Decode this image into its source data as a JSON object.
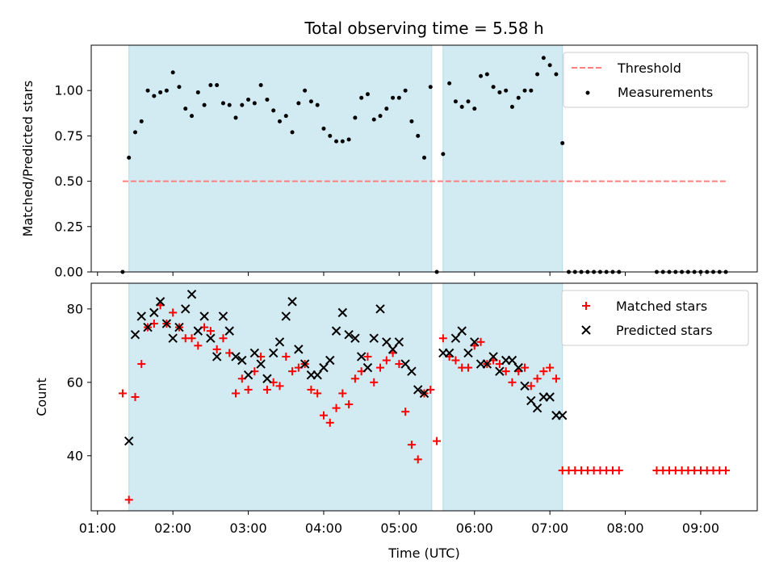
{
  "chart_data": [
    {
      "type": "scatter",
      "title": "Total observing time = 5.58 h",
      "xlabel": "",
      "ylabel": "Matched/Predicted stars",
      "xlim": [
        "00:55",
        "09:45"
      ],
      "ylim": [
        0,
        1.25
      ],
      "y_ticks": [
        "0.00",
        "0.25",
        "0.50",
        "0.75",
        "1.00"
      ],
      "y_tick_values": [
        0,
        0.25,
        0.5,
        0.75,
        1.0
      ],
      "grid": false,
      "legend_position": "upper right",
      "shaded_intervals": [
        [
          "01:25",
          "05:26"
        ],
        [
          "05:35",
          "07:10"
        ]
      ],
      "shade_color": "#add8e6",
      "threshold": {
        "name": "Threshold",
        "y": 0.5,
        "x_start": "01:20",
        "x_end": "09:20",
        "color": "#ff7f7f"
      },
      "series": [
        {
          "name": "Measurements",
          "marker": "dot",
          "color": "#000000",
          "x": [
            "01:20",
            "01:25",
            "01:30",
            "01:35",
            "01:40",
            "01:45",
            "01:50",
            "01:55",
            "02:00",
            "02:05",
            "02:10",
            "02:15",
            "02:20",
            "02:25",
            "02:30",
            "02:35",
            "02:40",
            "02:45",
            "02:50",
            "02:55",
            "03:00",
            "03:05",
            "03:10",
            "03:15",
            "03:20",
            "03:25",
            "03:30",
            "03:35",
            "03:40",
            "03:45",
            "03:50",
            "03:55",
            "04:00",
            "04:05",
            "04:10",
            "04:15",
            "04:20",
            "04:25",
            "04:30",
            "04:35",
            "04:40",
            "04:45",
            "04:50",
            "04:55",
            "05:00",
            "05:05",
            "05:10",
            "05:15",
            "05:20",
            "05:25",
            "05:30",
            "05:35",
            "05:40",
            "05:45",
            "05:50",
            "05:55",
            "06:00",
            "06:05",
            "06:10",
            "06:15",
            "06:20",
            "06:25",
            "06:30",
            "06:35",
            "06:40",
            "06:45",
            "06:50",
            "06:55",
            "07:00",
            "07:05",
            "07:10",
            "07:15",
            "07:20",
            "07:25",
            "07:30",
            "07:35",
            "07:40",
            "07:45",
            "07:50",
            "07:55",
            "08:25",
            "08:30",
            "08:35",
            "08:40",
            "08:45",
            "08:50",
            "08:55",
            "09:00",
            "09:05",
            "09:10",
            "09:15",
            "09:20"
          ],
          "y": [
            0.0,
            0.63,
            0.77,
            0.83,
            1.0,
            0.97,
            0.99,
            1.0,
            1.1,
            1.02,
            0.9,
            0.86,
            0.99,
            0.92,
            1.03,
            1.03,
            0.93,
            0.92,
            0.85,
            0.92,
            0.95,
            0.93,
            1.03,
            0.95,
            0.89,
            0.83,
            0.86,
            0.77,
            0.93,
            1.0,
            0.94,
            0.92,
            0.79,
            0.75,
            0.72,
            0.72,
            0.73,
            0.85,
            0.96,
            0.98,
            0.84,
            0.86,
            0.9,
            0.96,
            0.96,
            1.0,
            0.83,
            0.75,
            0.63,
            1.02,
            0.0,
            0.65,
            1.04,
            0.94,
            0.91,
            0.94,
            0.9,
            1.08,
            1.09,
            1.02,
            0.99,
            1.0,
            0.91,
            0.96,
            1.0,
            1.0,
            1.09,
            1.18,
            1.14,
            1.09,
            0.71,
            0.0,
            0.0,
            0.0,
            0.0,
            0.0,
            0.0,
            0.0,
            0.0,
            0.0,
            0.0,
            0.0,
            0.0,
            0.0,
            0.0,
            0.0,
            0.0,
            0.0,
            0.0,
            0.0,
            0.0,
            0.0
          ]
        }
      ]
    },
    {
      "type": "scatter",
      "title": "",
      "xlabel": "Time (UTC)",
      "ylabel": "Count",
      "xlim": [
        "00:55",
        "09:45"
      ],
      "ylim": [
        25,
        87
      ],
      "x_ticks": [
        "01:00",
        "02:00",
        "03:00",
        "04:00",
        "05:00",
        "06:00",
        "07:00",
        "08:00",
        "09:00"
      ],
      "y_ticks": [
        "40",
        "60",
        "80"
      ],
      "y_tick_values": [
        40,
        60,
        80
      ],
      "grid": false,
      "legend_position": "upper right",
      "shaded_intervals": [
        [
          "01:25",
          "05:26"
        ],
        [
          "05:35",
          "07:10"
        ]
      ],
      "shade_color": "#add8e6",
      "series": [
        {
          "name": "Matched stars",
          "marker": "plus",
          "color": "#ff0000",
          "x": [
            "01:20",
            "01:25",
            "01:30",
            "01:35",
            "01:40",
            "01:45",
            "01:50",
            "01:55",
            "02:00",
            "02:05",
            "02:10",
            "02:15",
            "02:20",
            "02:25",
            "02:30",
            "02:35",
            "02:40",
            "02:45",
            "02:50",
            "02:55",
            "03:00",
            "03:05",
            "03:10",
            "03:15",
            "03:20",
            "03:25",
            "03:30",
            "03:35",
            "03:40",
            "03:45",
            "03:50",
            "03:55",
            "04:00",
            "04:05",
            "04:10",
            "04:15",
            "04:20",
            "04:25",
            "04:30",
            "04:35",
            "04:40",
            "04:45",
            "04:50",
            "04:55",
            "05:00",
            "05:05",
            "05:10",
            "05:15",
            "05:20",
            "05:25",
            "05:30",
            "05:35",
            "05:40",
            "05:45",
            "05:50",
            "05:55",
            "06:00",
            "06:05",
            "06:10",
            "06:15",
            "06:20",
            "06:25",
            "06:30",
            "06:35",
            "06:40",
            "06:45",
            "06:50",
            "06:55",
            "07:00",
            "07:05",
            "07:10",
            "07:15",
            "07:20",
            "07:25",
            "07:30",
            "07:35",
            "07:40",
            "07:45",
            "07:50",
            "07:55",
            "08:25",
            "08:30",
            "08:35",
            "08:40",
            "08:45",
            "08:50",
            "08:55",
            "09:00",
            "09:05",
            "09:10",
            "09:15",
            "09:20"
          ],
          "y": [
            57,
            28,
            56,
            65,
            75,
            76,
            81,
            76,
            79,
            75,
            72,
            72,
            70,
            75,
            74,
            69,
            72,
            68,
            57,
            61,
            58,
            63,
            67,
            58,
            60,
            59,
            67,
            63,
            64,
            65,
            58,
            57,
            51,
            49,
            53,
            57,
            54,
            61,
            63,
            67,
            60,
            64,
            66,
            68,
            65,
            52,
            43,
            39,
            57,
            58,
            44,
            72,
            67,
            66,
            64,
            64,
            70,
            71,
            65,
            66,
            65,
            63,
            60,
            63,
            64,
            59,
            61,
            63,
            64,
            61,
            36,
            36,
            36,
            36,
            36,
            36,
            36,
            36,
            36,
            36,
            36,
            36,
            36,
            36,
            36,
            36,
            36,
            36,
            36,
            36,
            36,
            36
          ]
        },
        {
          "name": "Predicted stars",
          "marker": "x",
          "color": "#000000",
          "x": [
            "01:25",
            "01:30",
            "01:35",
            "01:40",
            "01:45",
            "01:50",
            "01:55",
            "02:00",
            "02:05",
            "02:10",
            "02:15",
            "02:20",
            "02:25",
            "02:30",
            "02:35",
            "02:40",
            "02:45",
            "02:50",
            "02:55",
            "03:00",
            "03:05",
            "03:10",
            "03:15",
            "03:20",
            "03:25",
            "03:30",
            "03:35",
            "03:40",
            "03:45",
            "03:50",
            "03:55",
            "04:00",
            "04:05",
            "04:10",
            "04:15",
            "04:20",
            "04:25",
            "04:30",
            "04:35",
            "04:40",
            "04:45",
            "04:50",
            "04:55",
            "05:00",
            "05:05",
            "05:10",
            "05:15",
            "05:20",
            "05:35",
            "05:40",
            "05:45",
            "05:50",
            "05:55",
            "06:00",
            "06:05",
            "06:10",
            "06:15",
            "06:20",
            "06:25",
            "06:30",
            "06:35",
            "06:40",
            "06:45",
            "06:50",
            "06:55",
            "07:00",
            "07:05",
            "07:10"
          ],
          "y": [
            44,
            73,
            78,
            75,
            79,
            82,
            76,
            72,
            75,
            80,
            84,
            74,
            78,
            72,
            67,
            78,
            74,
            67,
            66,
            62,
            68,
            65,
            61,
            68,
            71,
            78,
            82,
            69,
            65,
            62,
            62,
            64,
            66,
            74,
            79,
            73,
            72,
            67,
            64,
            72,
            80,
            71,
            69,
            71,
            65,
            63,
            58,
            57,
            68,
            68,
            72,
            74,
            68,
            71,
            65,
            65,
            67,
            63,
            66,
            66,
            64,
            59,
            55,
            53,
            56,
            56,
            51,
            51
          ]
        }
      ]
    }
  ]
}
